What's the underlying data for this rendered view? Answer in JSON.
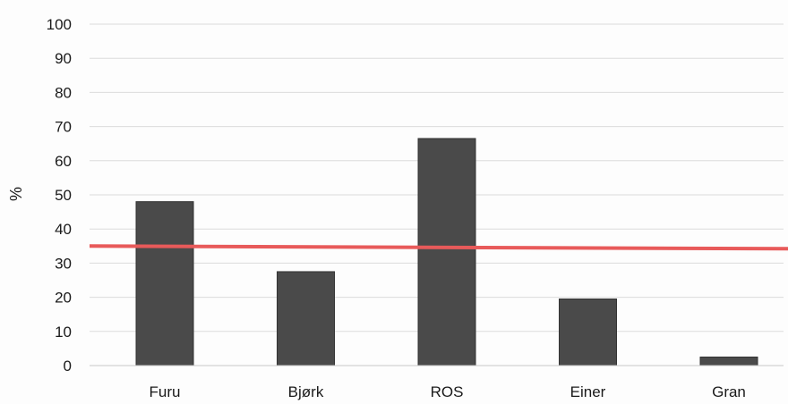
{
  "chart_data": {
    "type": "bar",
    "categories": [
      "Furu",
      "Bjørk",
      "ROS",
      "Einer",
      "Gran"
    ],
    "series": [
      {
        "values": [
          48,
          27.5,
          66.5,
          19.5,
          2.5
        ],
        "color": "#4a4a4a"
      }
    ],
    "reference_line": {
      "value": 35,
      "color": "#e85a5a"
    },
    "xlabel": "",
    "ylabel": "%",
    "ylim": [
      0,
      100
    ],
    "yticks": [
      0,
      10,
      20,
      30,
      40,
      50,
      60,
      70,
      80,
      90,
      100
    ],
    "grid": true,
    "legend": "none"
  }
}
